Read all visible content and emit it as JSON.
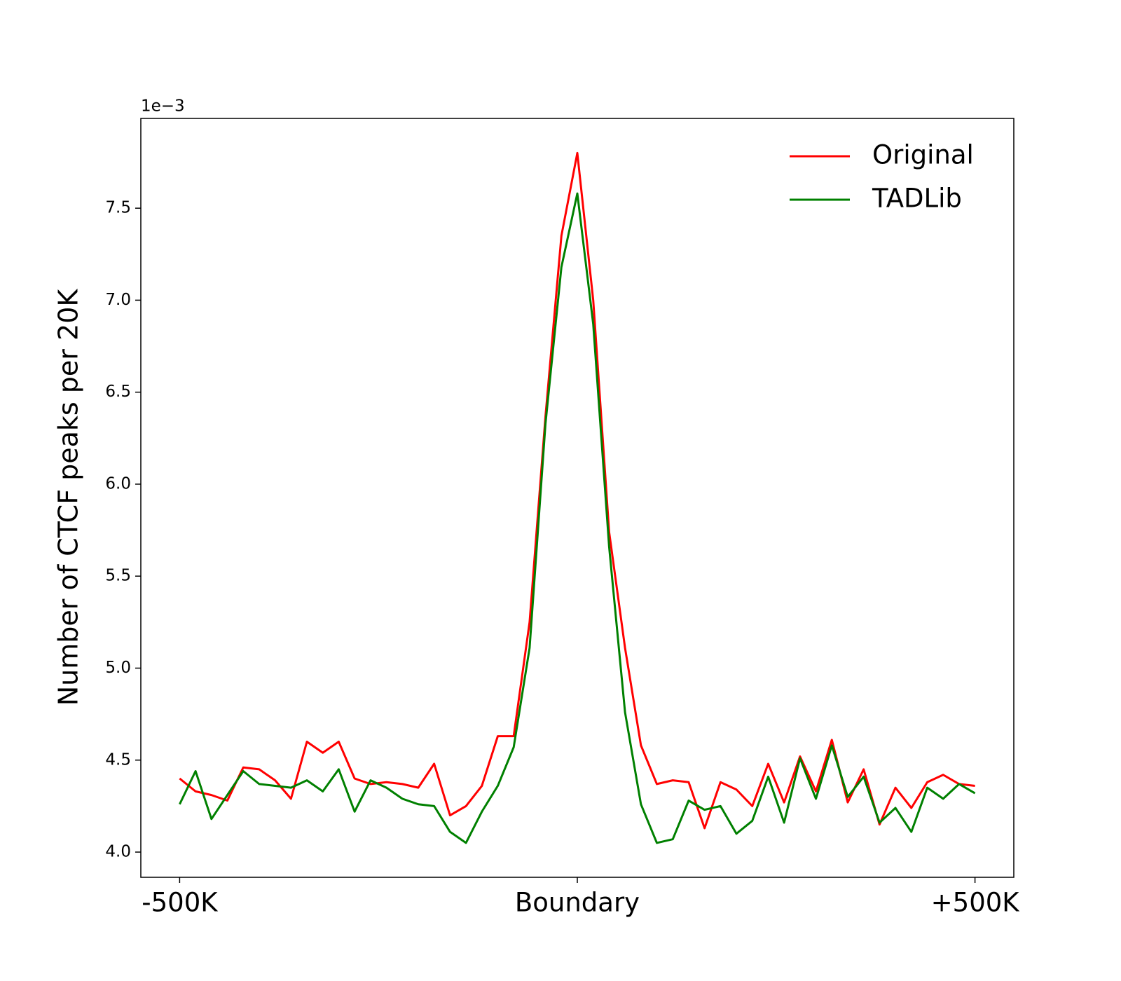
{
  "chart_data": {
    "type": "line",
    "ylabel": "Number of CTCF peaks per 20K",
    "y_offset_label": "1e−3",
    "x": [
      -500,
      -480,
      -460,
      -440,
      -420,
      -400,
      -380,
      -360,
      -340,
      -320,
      -300,
      -280,
      -260,
      -240,
      -220,
      -200,
      -180,
      -160,
      -140,
      -120,
      -100,
      -80,
      -60,
      -40,
      -20,
      0,
      20,
      40,
      60,
      80,
      100,
      120,
      140,
      160,
      180,
      200,
      220,
      240,
      260,
      280,
      300,
      320,
      340,
      360,
      380,
      400,
      420,
      440,
      460,
      480,
      500
    ],
    "series": [
      {
        "name": "Original",
        "color": "#ff0000",
        "values": [
          4.4,
          4.33,
          4.31,
          4.28,
          4.46,
          4.45,
          4.39,
          4.29,
          4.6,
          4.54,
          4.6,
          4.4,
          4.37,
          4.38,
          4.37,
          4.35,
          4.48,
          4.2,
          4.25,
          4.36,
          4.63,
          4.63,
          5.25,
          6.37,
          7.35,
          7.8,
          7.0,
          5.74,
          5.11,
          4.58,
          4.37,
          4.39,
          4.38,
          4.13,
          4.38,
          4.34,
          4.25,
          4.48,
          4.27,
          4.52,
          4.33,
          4.61,
          4.27,
          4.45,
          4.15,
          4.35,
          4.24,
          4.38,
          4.42,
          4.37,
          4.36
        ]
      },
      {
        "name": "TADLib",
        "color": "#008000",
        "values": [
          4.26,
          4.44,
          4.18,
          4.31,
          4.44,
          4.37,
          4.36,
          4.35,
          4.39,
          4.33,
          4.45,
          4.22,
          4.39,
          4.35,
          4.29,
          4.26,
          4.25,
          4.11,
          4.05,
          4.22,
          4.36,
          4.57,
          5.11,
          6.33,
          7.18,
          7.58,
          6.87,
          5.66,
          4.76,
          4.26,
          4.05,
          4.07,
          4.28,
          4.23,
          4.25,
          4.1,
          4.17,
          4.41,
          4.16,
          4.51,
          4.29,
          4.58,
          4.3,
          4.41,
          4.16,
          4.24,
          4.11,
          4.35,
          4.29,
          4.37,
          4.32
        ]
      }
    ],
    "xlim": [
      -548.8,
      548.8
    ],
    "xticks": [
      {
        "value": -500,
        "label": "-500K"
      },
      {
        "value": 0,
        "label": "Boundary"
      },
      {
        "value": 500,
        "label": "+500K"
      }
    ],
    "ylim": [
      3.863,
      7.988
    ],
    "yticks": [
      {
        "value": 4,
        "label": "4.0"
      },
      {
        "value": 4.5,
        "label": "4.5"
      },
      {
        "value": 5,
        "label": "5.0"
      },
      {
        "value": 5.5,
        "label": "5.5"
      },
      {
        "value": 6,
        "label": "6.0"
      },
      {
        "value": 6.5,
        "label": "6.5"
      },
      {
        "value": 7,
        "label": "7.0"
      },
      {
        "value": 7.5,
        "label": "7.5"
      }
    ],
    "grid": false,
    "legend": "upper right"
  }
}
